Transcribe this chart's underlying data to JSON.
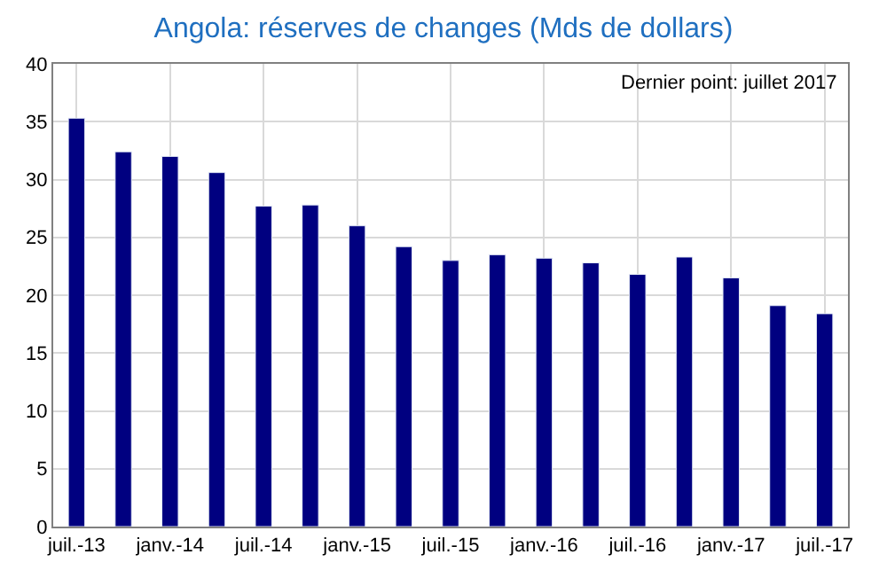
{
  "chart_data": {
    "type": "bar",
    "title": "Angola: réserves de changes (Mds de dollars)",
    "categories": [
      "juil.-13",
      null,
      "janv.-14",
      null,
      "juil.-14",
      null,
      "janv.-15",
      null,
      "juil.-15",
      null,
      "janv.-16",
      null,
      "juil.-16",
      null,
      "janv.-17",
      null,
      "juil.-17"
    ],
    "values": [
      35.3,
      32.4,
      32.0,
      30.6,
      27.7,
      27.8,
      26.0,
      24.2,
      23.0,
      23.5,
      23.2,
      22.8,
      21.8,
      23.3,
      21.5,
      19.1,
      18.4
    ],
    "color": "#000080",
    "ylim": [
      0,
      40
    ],
    "yticks": [
      0,
      5,
      10,
      15,
      20,
      25,
      30,
      35,
      40
    ],
    "grid": true,
    "annotations": [
      "Dernier point: juillet 2017"
    ]
  }
}
